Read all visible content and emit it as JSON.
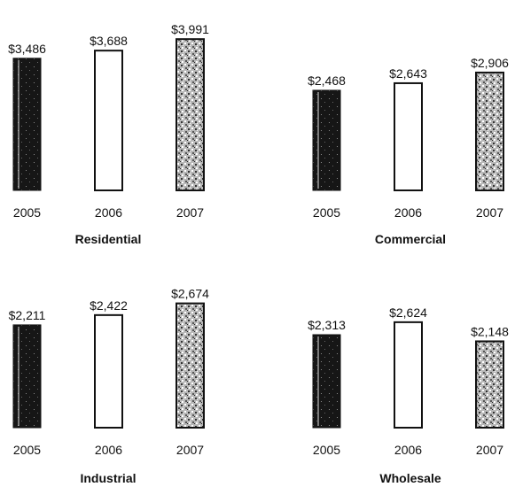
{
  "chart_data": [
    {
      "type": "bar",
      "title": "Residential",
      "categories": [
        "2005",
        "2006",
        "2007"
      ],
      "values": [
        3486,
        3688,
        3991
      ],
      "value_labels": [
        "$3,486",
        "$3,688",
        "$3,991"
      ],
      "ylim": [
        0,
        4000
      ],
      "grid": false,
      "bar_styles": [
        "dark",
        "white",
        "speckled"
      ],
      "colors": {
        "dark": "#1a1a1a",
        "white": "#ffffff",
        "speckled": "#9a9a9a"
      }
    },
    {
      "type": "bar",
      "title": "Commercial",
      "categories": [
        "2005",
        "2006",
        "2007"
      ],
      "values": [
        2468,
        2643,
        2906
      ],
      "value_labels": [
        "$2,468",
        "$2,643",
        "$2,906"
      ],
      "ylim": [
        0,
        4000
      ],
      "grid": false,
      "bar_styles": [
        "dark",
        "white",
        "speckled"
      ],
      "colors": {
        "dark": "#1a1a1a",
        "white": "#ffffff",
        "speckled": "#9a9a9a"
      }
    },
    {
      "type": "bar",
      "title": "Industrial",
      "categories": [
        "2005",
        "2006",
        "2007"
      ],
      "values": [
        2211,
        2422,
        2674
      ],
      "value_labels": [
        "$2,211",
        "$2,422",
        "$2,674"
      ],
      "ylim": [
        0,
        3000
      ],
      "grid": false,
      "bar_styles": [
        "dark",
        "white",
        "speckled"
      ],
      "colors": {
        "dark": "#1a1a1a",
        "white": "#ffffff",
        "speckled": "#9a9a9a"
      }
    },
    {
      "type": "bar",
      "title": "Wholesale",
      "categories": [
        "2005",
        "2006",
        "2007"
      ],
      "values": [
        2313,
        2624,
        2148
      ],
      "value_labels": [
        "$2,313",
        "$2,624",
        "$2,148"
      ],
      "ylim": [
        0,
        3000
      ],
      "grid": false,
      "bar_styles": [
        "dark",
        "white",
        "speckled"
      ],
      "colors": {
        "dark": "#1a1a1a",
        "white": "#ffffff",
        "speckled": "#9a9a9a"
      }
    }
  ]
}
